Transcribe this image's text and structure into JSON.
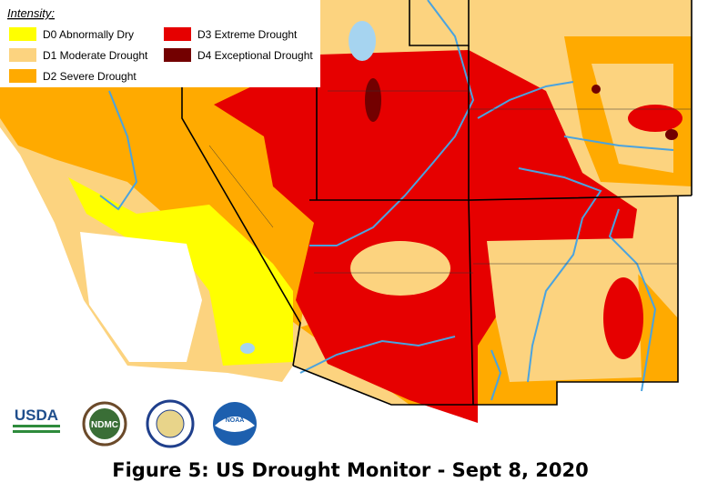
{
  "legend": {
    "title": "Intensity:",
    "items": [
      {
        "label": "D0 Abnormally Dry",
        "color": "#ffff00"
      },
      {
        "label": "D1 Moderate Drought",
        "color": "#fcd37f"
      },
      {
        "label": "D2 Severe Drought",
        "color": "#ffaa00"
      },
      {
        "label": "D3 Extreme Drought",
        "color": "#e60000"
      },
      {
        "label": "D4 Exceptional Drought",
        "color": "#730000"
      }
    ]
  },
  "logos": {
    "usda": "USDA",
    "ndmc": "NDMC",
    "noaa": "NOAA"
  },
  "caption": "Figure 5: US Drought Monitor - Sept 8, 2020"
}
